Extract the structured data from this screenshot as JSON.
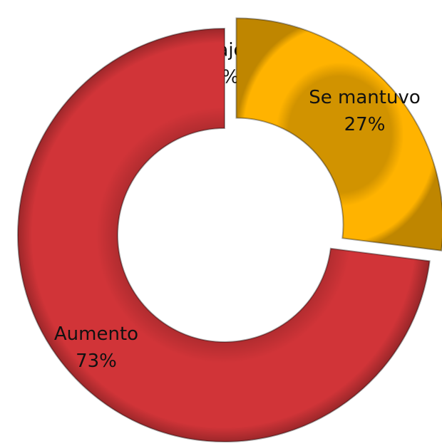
{
  "chart_data": {
    "type": "donut",
    "categories": [
      "Bajo",
      "Se mantuvo",
      "Aumento"
    ],
    "values": [
      0,
      27,
      73
    ],
    "value_labels": [
      "0%",
      "27%",
      "73%"
    ],
    "colors": [
      "#4f81bd",
      "#ffb300",
      "#d13438"
    ]
  }
}
